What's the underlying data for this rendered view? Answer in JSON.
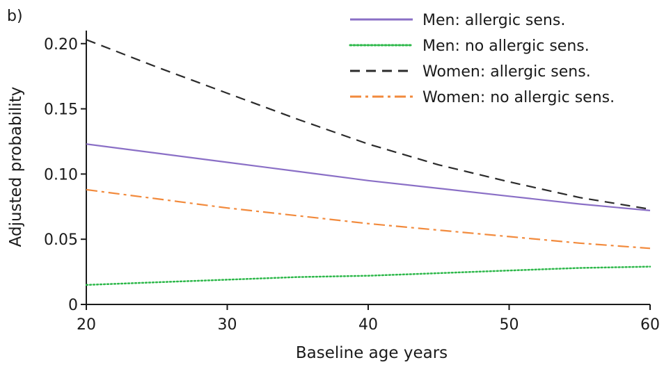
{
  "panel_label": "b)",
  "chart_data": {
    "type": "line",
    "title": "",
    "xlabel": "Baseline age years",
    "ylabel": "Adjusted probability",
    "xlim": [
      20,
      60
    ],
    "ylim": [
      0,
      0.21
    ],
    "x_ticks": [
      20,
      30,
      40,
      50,
      60
    ],
    "x_tick_labels": [
      "20",
      "30",
      "40",
      "50",
      "60"
    ],
    "y_ticks": [
      0,
      0.05,
      0.1,
      0.15,
      0.2
    ],
    "y_tick_labels": [
      "0",
      "0.05",
      "0.10",
      "0.15",
      "0.20"
    ],
    "grid": false,
    "legend_position": "top-right",
    "x": [
      20,
      25,
      30,
      35,
      40,
      45,
      50,
      55,
      60
    ],
    "series": [
      {
        "name": "Men: allergic sens.",
        "color": "#8a6fc6",
        "style": "solid",
        "values": [
          0.123,
          0.116,
          0.109,
          0.102,
          0.095,
          0.089,
          0.083,
          0.077,
          0.072
        ]
      },
      {
        "name": "Men: no allergic sens.",
        "color": "#2db84a",
        "style": "dotted",
        "values": [
          0.015,
          0.017,
          0.019,
          0.021,
          0.022,
          0.024,
          0.026,
          0.028,
          0.029
        ]
      },
      {
        "name": "Women: allergic sens.",
        "color": "#2b2b2b",
        "style": "dashed",
        "values": [
          0.203,
          0.182,
          0.162,
          0.142,
          0.123,
          0.107,
          0.094,
          0.082,
          0.073
        ]
      },
      {
        "name": "Women: no allergic sens.",
        "color": "#f28a3c",
        "style": "dashdot",
        "values": [
          0.088,
          0.081,
          0.074,
          0.068,
          0.062,
          0.057,
          0.052,
          0.047,
          0.043
        ]
      }
    ]
  }
}
